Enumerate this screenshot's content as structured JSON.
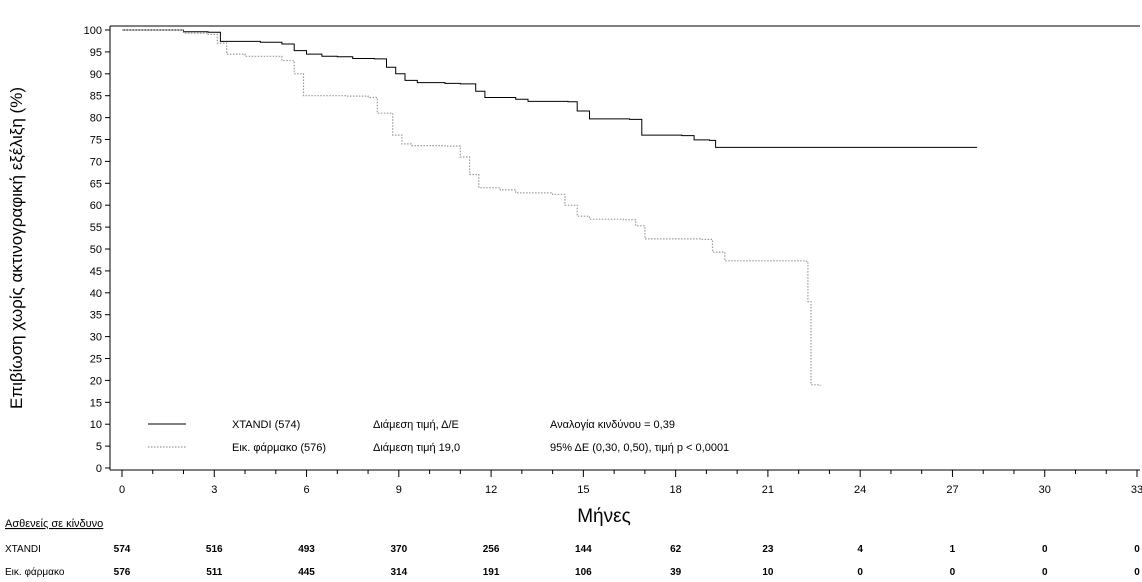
{
  "chart_data": {
    "type": "line",
    "ylabel": "Επιβίωση χωρίς ακτινογραφική εξέλιξη (%)",
    "xlabel": "Μήνες",
    "xlim": [
      0,
      33
    ],
    "ylim": [
      0,
      100
    ],
    "x_ticks": [
      0,
      3,
      6,
      9,
      12,
      15,
      18,
      21,
      24,
      27,
      30,
      33
    ],
    "y_ticks": [
      0,
      5,
      10,
      15,
      20,
      25,
      30,
      35,
      40,
      45,
      50,
      55,
      60,
      65,
      70,
      75,
      80,
      85,
      90,
      95,
      100
    ],
    "series": [
      {
        "name": "XTANDI (574)",
        "style": "solid",
        "color": "#000000",
        "points": [
          [
            0,
            100
          ],
          [
            1.5,
            100
          ],
          [
            2,
            99.6
          ],
          [
            2.8,
            99.5
          ],
          [
            3.2,
            97.4
          ],
          [
            4.5,
            97.2
          ],
          [
            5.2,
            96.8
          ],
          [
            5.6,
            95.3
          ],
          [
            6,
            94.5
          ],
          [
            6.5,
            94
          ],
          [
            7,
            93.9
          ],
          [
            7.5,
            93.5
          ],
          [
            8.2,
            93.4
          ],
          [
            8.6,
            91.5
          ],
          [
            8.9,
            90
          ],
          [
            9.2,
            88.5
          ],
          [
            9.6,
            88
          ],
          [
            10.5,
            87.8
          ],
          [
            11,
            87.7
          ],
          [
            11.5,
            86
          ],
          [
            11.8,
            84.6
          ],
          [
            12.8,
            84.2
          ],
          [
            13.2,
            83.7
          ],
          [
            14.5,
            83.6
          ],
          [
            14.8,
            81.5
          ],
          [
            15.2,
            79.7
          ],
          [
            16.5,
            79.6
          ],
          [
            16.9,
            76
          ],
          [
            18.2,
            75.9
          ],
          [
            18.6,
            74.9
          ],
          [
            19.1,
            74.8
          ],
          [
            19.3,
            73.2
          ],
          [
            27.8,
            73.2
          ]
        ]
      },
      {
        "name": "Εικ. φάρμακο (576)",
        "style": "dotted",
        "color": "#9a9a9a",
        "points": [
          [
            0,
            100
          ],
          [
            1.5,
            100
          ],
          [
            2,
            99.3
          ],
          [
            2.8,
            99
          ],
          [
            3.1,
            97
          ],
          [
            3.4,
            94.5
          ],
          [
            4,
            94
          ],
          [
            5.2,
            93
          ],
          [
            5.6,
            90
          ],
          [
            5.9,
            85
          ],
          [
            7.3,
            84.9
          ],
          [
            8,
            84.6
          ],
          [
            8.3,
            81
          ],
          [
            8.8,
            76
          ],
          [
            9.1,
            74
          ],
          [
            9.4,
            73.6
          ],
          [
            10.5,
            73.5
          ],
          [
            11,
            71
          ],
          [
            11.3,
            67
          ],
          [
            11.6,
            64
          ],
          [
            12.3,
            63.5
          ],
          [
            12.8,
            62.8
          ],
          [
            14,
            62.5
          ],
          [
            14.4,
            60
          ],
          [
            14.8,
            57.5
          ],
          [
            15.2,
            56.8
          ],
          [
            16.3,
            56.7
          ],
          [
            16.7,
            55.3
          ],
          [
            17,
            52.3
          ],
          [
            18.8,
            52.2
          ],
          [
            19.2,
            49.3
          ],
          [
            19.6,
            47.3
          ],
          [
            22.2,
            47.2
          ],
          [
            22.3,
            38
          ],
          [
            22.4,
            19
          ],
          [
            22.7,
            18.8
          ]
        ]
      }
    ],
    "legend": {
      "placement": "bottom-left",
      "rows": [
        {
          "series_name": "XTANDI (574)",
          "median": "Διάμεση τιμή, Δ/Ε",
          "stat": "Αναλογία κινδύνου = 0,39"
        },
        {
          "series_name": "Εικ. φάρμακο (576)",
          "median": "Διάμεση τιμή 19,0",
          "stat": "95% ΔΕ (0,30, 0,50), τιμή p < 0,0001"
        }
      ]
    },
    "risk_table": {
      "title": "Ασθενείς σε κίνδυνο",
      "rows": [
        {
          "label": "XTANDI",
          "values": [
            574,
            516,
            493,
            370,
            256,
            144,
            62,
            23,
            4,
            1,
            0,
            0
          ]
        },
        {
          "label": "Εικ. φάρμακο",
          "values": [
            576,
            511,
            445,
            314,
            191,
            106,
            39,
            10,
            0,
            0,
            0,
            0
          ]
        }
      ]
    }
  }
}
